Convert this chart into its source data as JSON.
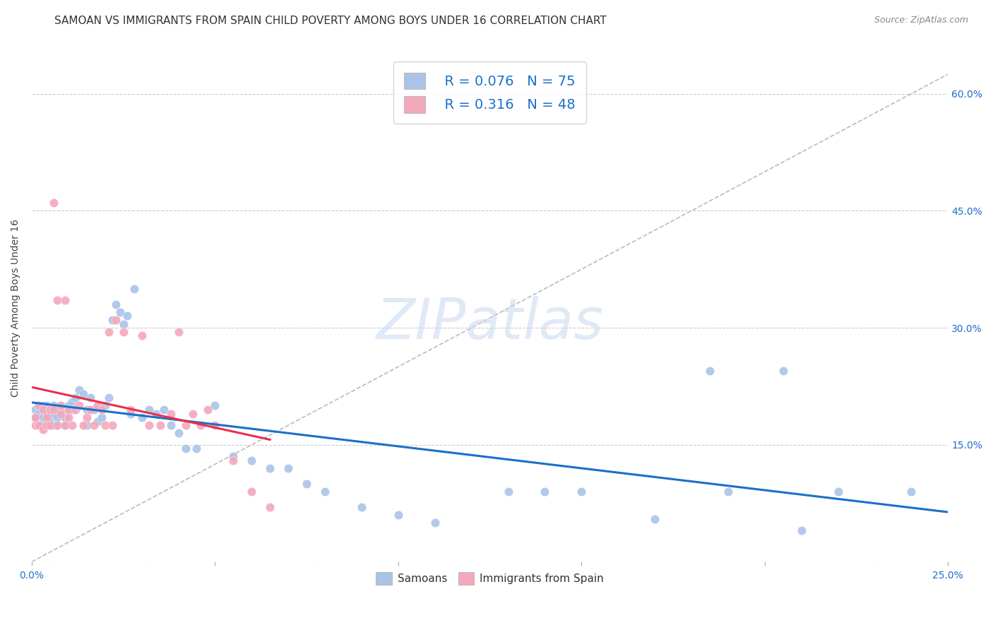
{
  "title": "SAMOAN VS IMMIGRANTS FROM SPAIN CHILD POVERTY AMONG BOYS UNDER 16 CORRELATION CHART",
  "source": "Source: ZipAtlas.com",
  "ylabel": "Child Poverty Among Boys Under 16",
  "xlim": [
    0.0,
    0.25
  ],
  "ylim": [
    0.0,
    0.65
  ],
  "samoans_R": 0.076,
  "samoans_N": 75,
  "spain_R": 0.316,
  "spain_N": 48,
  "samoans_color": "#aac4e8",
  "spain_color": "#f4a8bc",
  "samoans_line_color": "#1a6fcc",
  "spain_line_color": "#e8304a",
  "diagonal_color": "#bbbbbb",
  "background_color": "#ffffff",
  "legend_samoans": "Samoans",
  "legend_spain": "Immigrants from Spain",
  "title_fontsize": 11,
  "axis_label_fontsize": 10,
  "tick_fontsize": 10,
  "samoans_x": [
    0.001,
    0.001,
    0.002,
    0.002,
    0.002,
    0.003,
    0.003,
    0.003,
    0.003,
    0.004,
    0.004,
    0.004,
    0.005,
    0.005,
    0.005,
    0.006,
    0.006,
    0.006,
    0.007,
    0.007,
    0.007,
    0.008,
    0.008,
    0.009,
    0.009,
    0.01,
    0.01,
    0.011,
    0.011,
    0.012,
    0.013,
    0.014,
    0.015,
    0.015,
    0.016,
    0.017,
    0.018,
    0.019,
    0.02,
    0.021,
    0.022,
    0.023,
    0.024,
    0.025,
    0.026,
    0.027,
    0.028,
    0.03,
    0.032,
    0.034,
    0.036,
    0.038,
    0.04,
    0.042,
    0.045,
    0.05,
    0.055,
    0.06,
    0.065,
    0.07,
    0.075,
    0.08,
    0.09,
    0.1,
    0.11,
    0.13,
    0.14,
    0.15,
    0.17,
    0.185,
    0.19,
    0.205,
    0.21,
    0.22,
    0.24
  ],
  "samoans_y": [
    0.195,
    0.185,
    0.2,
    0.175,
    0.19,
    0.195,
    0.175,
    0.185,
    0.2,
    0.175,
    0.19,
    0.2,
    0.195,
    0.175,
    0.185,
    0.2,
    0.19,
    0.175,
    0.195,
    0.185,
    0.175,
    0.2,
    0.195,
    0.185,
    0.175,
    0.195,
    0.2,
    0.205,
    0.195,
    0.21,
    0.22,
    0.215,
    0.195,
    0.175,
    0.21,
    0.195,
    0.18,
    0.185,
    0.2,
    0.21,
    0.31,
    0.33,
    0.32,
    0.305,
    0.315,
    0.19,
    0.35,
    0.185,
    0.195,
    0.19,
    0.195,
    0.175,
    0.165,
    0.145,
    0.145,
    0.2,
    0.135,
    0.13,
    0.12,
    0.12,
    0.1,
    0.09,
    0.07,
    0.06,
    0.05,
    0.09,
    0.09,
    0.09,
    0.055,
    0.245,
    0.09,
    0.245,
    0.04,
    0.09,
    0.09
  ],
  "spain_x": [
    0.001,
    0.001,
    0.002,
    0.002,
    0.003,
    0.003,
    0.004,
    0.004,
    0.005,
    0.005,
    0.006,
    0.006,
    0.007,
    0.007,
    0.008,
    0.008,
    0.009,
    0.009,
    0.01,
    0.01,
    0.011,
    0.012,
    0.013,
    0.014,
    0.015,
    0.016,
    0.017,
    0.018,
    0.019,
    0.02,
    0.021,
    0.022,
    0.023,
    0.025,
    0.027,
    0.03,
    0.032,
    0.035,
    0.038,
    0.04,
    0.042,
    0.044,
    0.046,
    0.048,
    0.05,
    0.055,
    0.06,
    0.065
  ],
  "spain_y": [
    0.175,
    0.185,
    0.175,
    0.2,
    0.195,
    0.17,
    0.175,
    0.185,
    0.195,
    0.175,
    0.46,
    0.195,
    0.335,
    0.175,
    0.19,
    0.2,
    0.175,
    0.335,
    0.195,
    0.185,
    0.175,
    0.195,
    0.2,
    0.175,
    0.185,
    0.195,
    0.175,
    0.2,
    0.195,
    0.175,
    0.295,
    0.175,
    0.31,
    0.295,
    0.195,
    0.29,
    0.175,
    0.175,
    0.19,
    0.295,
    0.175,
    0.19,
    0.175,
    0.195,
    0.175,
    0.13,
    0.09,
    0.07
  ]
}
